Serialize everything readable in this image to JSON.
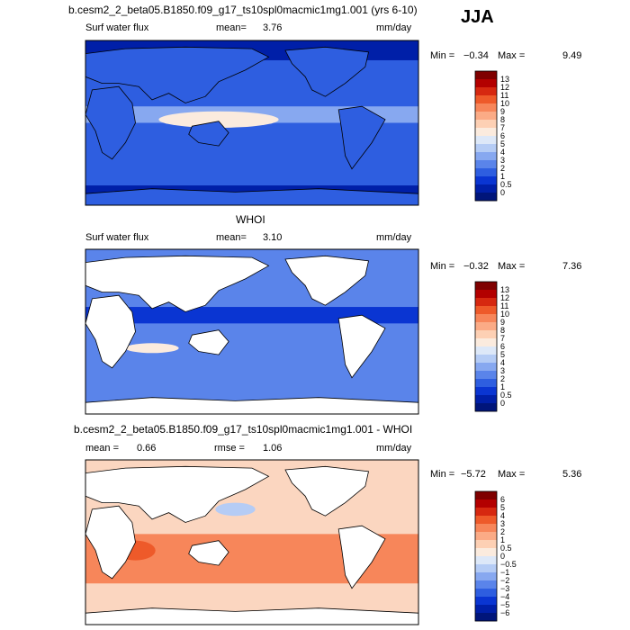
{
  "season": "JJA",
  "panels": [
    {
      "title": "b.cesm2_2_beta05.B1850.f09_g17_ts10spl0macmic1mg1.001 (yrs 6-10)",
      "left_label": "Surf water flux",
      "stat_label": "mean=",
      "stat_value": "3.76",
      "units": "mm/day",
      "min_label": "Min =",
      "min_value": "−0.34",
      "max_label": "Max =",
      "max_value": "9.49",
      "colorbar": {
        "labels": [
          "13",
          "12",
          "11",
          "10",
          "9",
          "8",
          "7",
          "6",
          "5",
          "4",
          "3",
          "2",
          "1",
          "0.5",
          "0"
        ],
        "colors": [
          "#7f0000",
          "#b30000",
          "#d62810",
          "#ee5a2a",
          "#f7865a",
          "#fbab86",
          "#fdd0b4",
          "#fbebde",
          "#dde8f8",
          "#b5ccf5",
          "#87a8f0",
          "#5a84ea",
          "#2e5ee0",
          "#0a35d2",
          "#001fa8",
          "#00157a"
        ]
      },
      "map": {
        "base_color": "#2e5ee0",
        "land_color": "#2e5ee0",
        "has_land_masked": false
      }
    },
    {
      "title": "WHOI",
      "left_label": "Surf water flux",
      "stat_label": "mean=",
      "stat_value": "3.10",
      "units": "mm/day",
      "min_label": "Min =",
      "min_value": "−0.32",
      "max_label": "Max =",
      "max_value": "7.36",
      "colorbar": {
        "labels": [
          "13",
          "12",
          "11",
          "10",
          "9",
          "8",
          "7",
          "6",
          "5",
          "4",
          "3",
          "2",
          "1",
          "0.5",
          "0"
        ],
        "colors": [
          "#7f0000",
          "#b30000",
          "#d62810",
          "#ee5a2a",
          "#f7865a",
          "#fbab86",
          "#fdd0b4",
          "#fbebde",
          "#dde8f8",
          "#b5ccf5",
          "#87a8f0",
          "#5a84ea",
          "#2e5ee0",
          "#0a35d2",
          "#001fa8",
          "#00157a"
        ]
      },
      "map": {
        "base_color": "#5a84ea",
        "land_color": "#ffffff",
        "has_land_masked": true
      }
    },
    {
      "title": "b.cesm2_2_beta05.B1850.f09_g17_ts10spl0macmic1mg1.001 - WHOI",
      "left_label": "mean =",
      "left_value": "0.66",
      "stat_label": "rmse =",
      "stat_value": "1.06",
      "units": "mm/day",
      "min_label": "Min =",
      "min_value": "−5.72",
      "max_label": "Max =",
      "max_value": "5.36",
      "colorbar": {
        "labels": [
          "6",
          "5",
          "4",
          "3",
          "2",
          "1",
          "0.5",
          "0",
          "−0.5",
          "−1",
          "−2",
          "−3",
          "−4",
          "−5",
          "−6"
        ],
        "colors": [
          "#7f0000",
          "#b30000",
          "#d62810",
          "#ee5a2a",
          "#f7865a",
          "#fbab86",
          "#fdd0b4",
          "#fbebde",
          "#dde8f8",
          "#b5ccf5",
          "#87a8f0",
          "#5a84ea",
          "#2e5ee0",
          "#0a35d2",
          "#001fa8",
          "#00157a"
        ]
      },
      "map": {
        "base_color": "#fbd6c0",
        "land_color": "#ffffff",
        "has_land_masked": true
      }
    }
  ]
}
